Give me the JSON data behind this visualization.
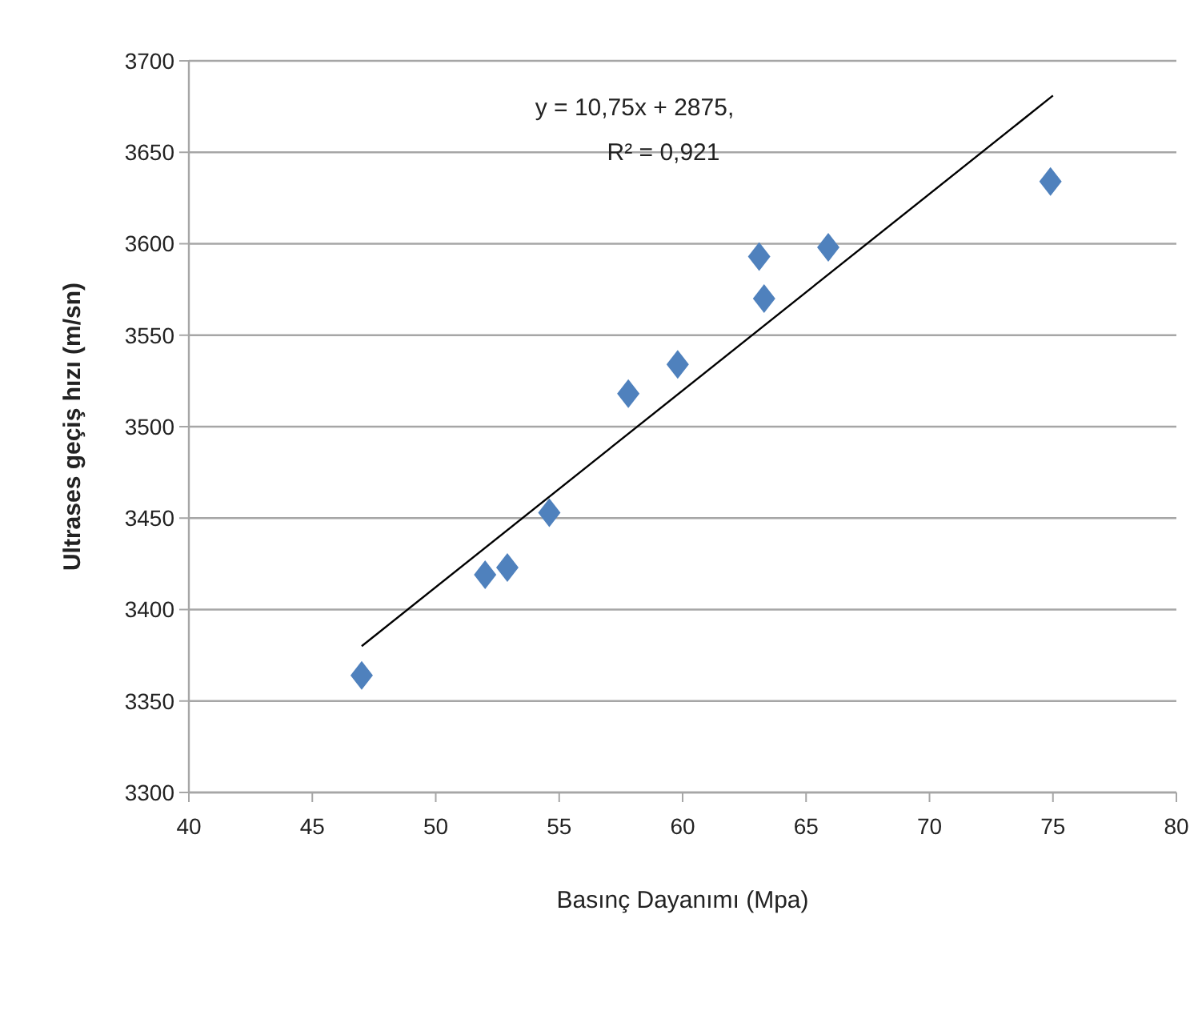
{
  "chart_data": {
    "type": "scatter",
    "xlabel": "Basınç Dayanımı (Mpa)",
    "ylabel": "Ultrases geçiş hızı (m/sn)",
    "xlim": [
      40,
      80
    ],
    "xticks": [
      40,
      45,
      50,
      55,
      60,
      65,
      70,
      75,
      80
    ],
    "ylim": [
      3300,
      3700
    ],
    "yticks": [
      3300,
      3350,
      3400,
      3450,
      3500,
      3550,
      3600,
      3650,
      3700
    ],
    "grid": "y",
    "marker": "diamond",
    "annotations": [
      "y = 10,75x + 2875,",
      "R² = 0,921"
    ],
    "series": [
      {
        "color": "#4f81bd",
        "x": [
          47.0,
          52.0,
          52.9,
          54.6,
          57.8,
          59.8,
          63.1,
          63.3,
          65.9,
          74.9
        ],
        "values": [
          3364,
          3419,
          3423,
          3453,
          3518,
          3534,
          3593,
          3570,
          3598,
          3634
        ]
      },
      {
        "type": "line",
        "color": "#000000",
        "marker": "none",
        "x": [
          47,
          75
        ],
        "values": [
          3380,
          3681
        ]
      }
    ]
  }
}
